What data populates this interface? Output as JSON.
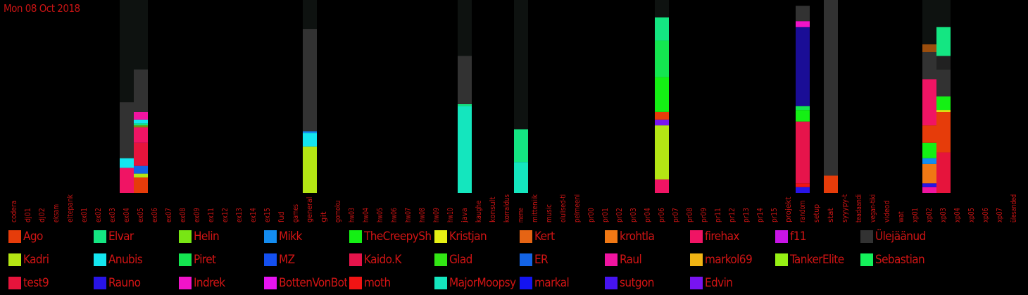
{
  "date": "Mon 08 Oct 2018",
  "chart_data": {
    "type": "bar",
    "stacked": true,
    "categories": [
      "codera",
      "dj01",
      "dj02",
      "eksam",
      "eltepank",
      "ex01",
      "ex02",
      "ex03",
      "ex04",
      "ex05",
      "ex06",
      "ex07",
      "ex08",
      "ex09",
      "ex11",
      "ex12",
      "ex13",
      "ex14",
      "ex15",
      "fud",
      "games",
      "general",
      "git",
      "gomoku",
      "hw03",
      "hw04",
      "hw05",
      "hw06",
      "hw07",
      "hw08",
      "hw09",
      "hw10",
      "java",
      "kaughe",
      "konsult",
      "korraldus",
      "meme",
      "mitteniik",
      "music",
      "olulised-ti",
      "pelmeeni",
      "pr00",
      "pr01",
      "pr02",
      "pr03",
      "pr04",
      "pr06",
      "pr07",
      "pr08",
      "pr09",
      "pr11",
      "pr12",
      "pr13",
      "pr14",
      "pr15",
      "projekt",
      "random",
      "setup",
      "stat",
      "syyypy-t",
      "teadaandi",
      "vegan-tiki",
      "videod",
      "wat",
      "xp01",
      "xp02",
      "xp03",
      "xp04",
      "xp05",
      "xp06",
      "xp07",
      "ülesanded"
    ],
    "background_columns": [
      {
        "category": "ex04",
        "value": 100
      },
      {
        "category": "ex05",
        "value": 100
      },
      {
        "category": "general",
        "value": 100
      },
      {
        "category": "java",
        "value": 100
      },
      {
        "category": "meme",
        "value": 100
      },
      {
        "category": "pr06",
        "value": 100
      },
      {
        "category": "stat",
        "value": 100
      },
      {
        "category": "xp02",
        "value": 100
      },
      {
        "category": "xp03",
        "value": 100
      }
    ],
    "bars": [
      {
        "category": "ex04",
        "segments": [
          {
            "series": "firehax",
            "value": 13
          },
          {
            "series": "Anubis",
            "value": 5
          },
          {
            "series": "Ülejäänud",
            "value": 29
          }
        ]
      },
      {
        "category": "ex05",
        "segments": [
          {
            "series": "Ago",
            "value": 8
          },
          {
            "series": "Kadri",
            "value": 2
          },
          {
            "series": "ER",
            "value": 4
          },
          {
            "series": "test9",
            "value": 12
          },
          {
            "series": "firehax",
            "value": 8
          },
          {
            "series": "Kadri",
            "value": 1
          },
          {
            "series": "Elvar",
            "value": 1
          },
          {
            "series": "Anubis",
            "value": 2
          },
          {
            "series": "Raul",
            "value": 4
          },
          {
            "series": "Ülejäänud",
            "value": 22
          }
        ]
      },
      {
        "category": "general",
        "segments": [
          {
            "series": "Kadri",
            "value": 24
          },
          {
            "series": "Anubis",
            "value": 7
          },
          {
            "series": "Mikk",
            "value": 1
          },
          {
            "series": "Ülejäänud",
            "value": 53
          }
        ]
      },
      {
        "category": "java",
        "segments": [
          {
            "series": "MajorMoopsy",
            "value": 45
          },
          {
            "series": "Elvar",
            "value": 1
          },
          {
            "series": "Ülejäänud",
            "value": 25
          }
        ]
      },
      {
        "category": "meme",
        "segments": [
          {
            "series": "MajorMoopsy",
            "value": 16
          },
          {
            "series": "Elvar",
            "value": 17
          }
        ]
      },
      {
        "category": "pr06",
        "segments": [
          {
            "series": "firehax",
            "value": 7
          },
          {
            "series": "Kadri",
            "value": 28
          },
          {
            "series": "Edvin",
            "value": 3
          },
          {
            "series": "Ago",
            "value": 4
          },
          {
            "series": "TheCreepySh",
            "value": 18
          },
          {
            "series": "Piret",
            "value": 19
          },
          {
            "series": "Elvar",
            "value": 12
          }
        ]
      },
      {
        "category": "random",
        "segments": [
          {
            "series": "Rauno",
            "value": 3
          },
          {
            "series": "moth",
            "value": 2
          },
          {
            "series": "Kaido.K",
            "value": 32
          },
          {
            "series": "TheCreepySh",
            "value": 6
          },
          {
            "series": "Piret",
            "value": 2
          },
          {
            "series": "Rauno",
            "value": 41
          },
          {
            "series": "Indrek",
            "value": 3
          },
          {
            "series": "Ülejäänud",
            "value": 8
          }
        ]
      },
      {
        "category": "stat",
        "segments": [
          {
            "series": "Ago",
            "value": 9
          },
          {
            "series": "Ülejäänud",
            "value": 91
          }
        ]
      },
      {
        "category": "xp02",
        "segments": [
          {
            "series": "Raul",
            "value": 3
          },
          {
            "series": "Rauno",
            "value": 2
          },
          {
            "series": "krohtla",
            "value": 10
          },
          {
            "series": "Mikk",
            "value": 3
          },
          {
            "series": "TheCreepySh",
            "value": 8
          },
          {
            "series": "Ago",
            "value": 9
          },
          {
            "series": "firehax",
            "value": 24
          },
          {
            "series": "Ülejäänud",
            "value": 14
          },
          {
            "series": "krohtla",
            "value": 4
          }
        ]
      },
      {
        "category": "xp03",
        "segments": [
          {
            "series": "test9",
            "value": 21
          },
          {
            "series": "Ago",
            "value": 21
          },
          {
            "series": "Kristjan",
            "value": 1
          },
          {
            "series": "TheCreepySh",
            "value": 7
          },
          {
            "series": "Ülejäänud",
            "value": 14
          },
          {
            "series": "Ülejäänud",
            "value": 7
          },
          {
            "series": "Elvar",
            "value": 15
          }
        ]
      }
    ],
    "ylim": [
      0,
      100
    ]
  },
  "legend": [
    {
      "name": "Ago",
      "color": "#e63c0a"
    },
    {
      "name": "Elvar",
      "color": "#14e682"
    },
    {
      "name": "Helin",
      "color": "#78e614"
    },
    {
      "name": "Mikk",
      "color": "#148cf0"
    },
    {
      "name": "TheCreepySh",
      "color": "#14f014"
    },
    {
      "name": "Kristjan",
      "color": "#e6f014"
    },
    {
      "name": "Kert",
      "color": "#e66414"
    },
    {
      "name": "krohtla",
      "color": "#f07814"
    },
    {
      "name": "firehax",
      "color": "#f01464"
    },
    {
      "name": "f11",
      "color": "#c814e6"
    },
    {
      "name": "Ülejäänud",
      "color": "#323232"
    },
    {
      "name": "Kadri",
      "color": "#b4e614"
    },
    {
      "name": "Anubis",
      "color": "#14e6f0"
    },
    {
      "name": "Piret",
      "color": "#14e650"
    },
    {
      "name": "MZ",
      "color": "#1450f0"
    },
    {
      "name": "Kaido.K",
      "color": "#e6144b"
    },
    {
      "name": "Glad",
      "color": "#32e614"
    },
    {
      "name": "ER",
      "color": "#1464e6"
    },
    {
      "name": "Raul",
      "color": "#f014a0"
    },
    {
      "name": "markol69",
      "color": "#f0b414"
    },
    {
      "name": "TankerElite",
      "color": "#96f014"
    },
    {
      "name": "Sebastian",
      "color": "#14f05a"
    },
    {
      "name": "test9",
      "color": "#e6143c"
    },
    {
      "name": "Rauno",
      "color": "#2814e6"
    },
    {
      "name": "Indrek",
      "color": "#f014c8"
    },
    {
      "name": "BottenVonBot",
      "color": "#e614f0"
    },
    {
      "name": "moth",
      "color": "#f01414"
    },
    {
      "name": "MajorMoopsy",
      "color": "#14e6be"
    },
    {
      "name": "markal",
      "color": "#1414f0"
    },
    {
      "name": "sutgon",
      "color": "#4614f0"
    },
    {
      "name": "Edvin",
      "color": "#7814f0"
    }
  ]
}
